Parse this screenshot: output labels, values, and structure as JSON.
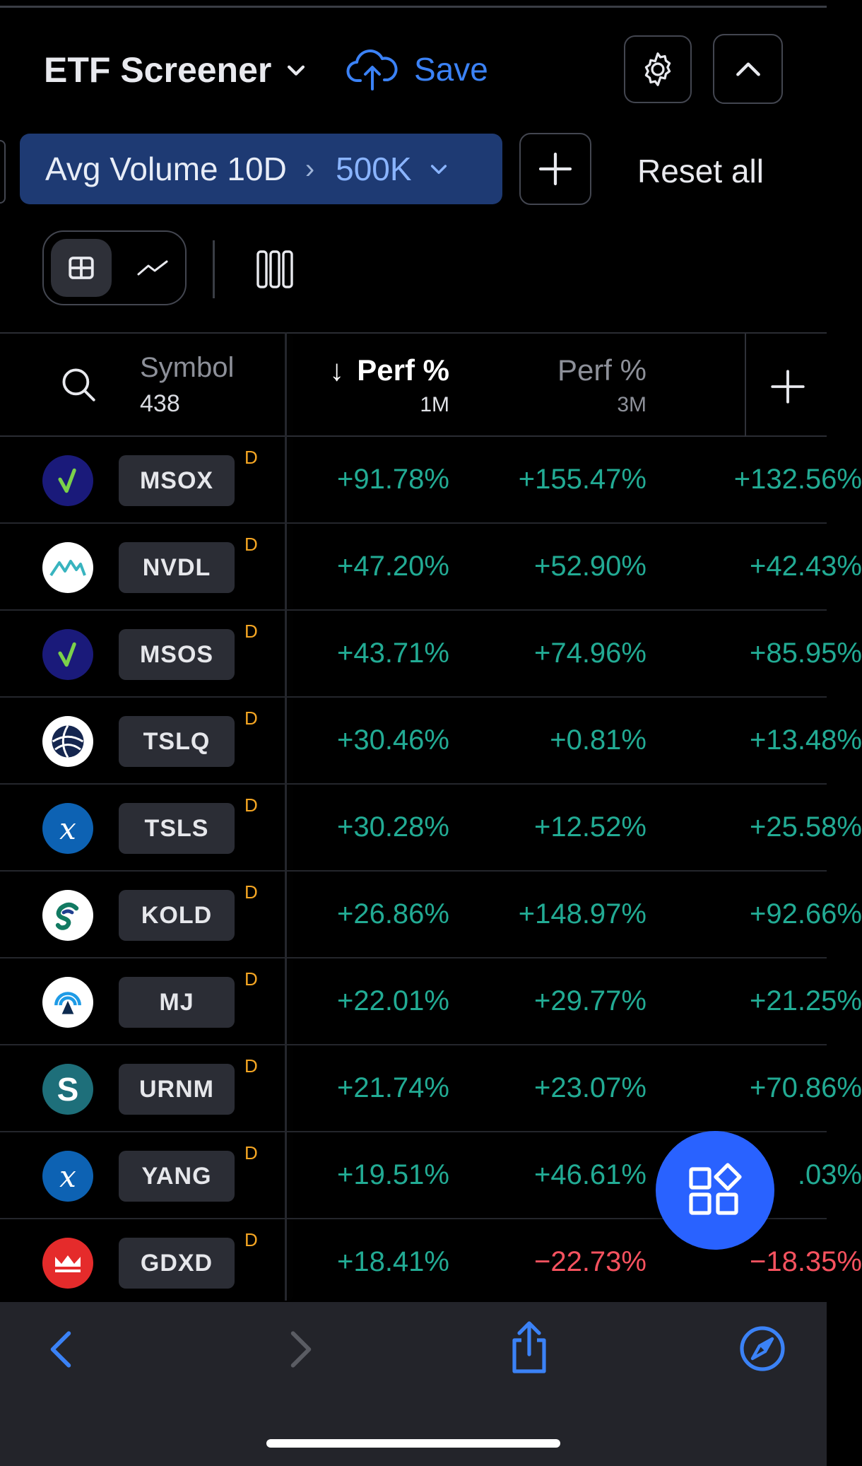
{
  "header": {
    "title": "ETF Screener",
    "save_label": "Save"
  },
  "filters": {
    "active_filter": {
      "name": "Avg Volume 10D",
      "value": "500K"
    },
    "reset_label": "Reset all"
  },
  "table": {
    "symbol_header": "Symbol",
    "symbol_count": "438",
    "columns": [
      {
        "label": "Perf %",
        "sub": "1M",
        "sorted": "desc"
      },
      {
        "label": "Perf %",
        "sub": "3M"
      }
    ],
    "rows": [
      {
        "symbol": "MSOX",
        "flag": "D",
        "logo": "checkmark-logo",
        "logo_bg": "#1a1a7a",
        "p1": "+91.78%",
        "p2": "+155.47%",
        "p3": "+132.56%"
      },
      {
        "symbol": "NVDL",
        "flag": "D",
        "logo": "mountain-logo",
        "logo_bg": "#ffffff",
        "p1": "+47.20%",
        "p2": "+52.90%",
        "p3": "+42.43%"
      },
      {
        "symbol": "MSOS",
        "flag": "D",
        "logo": "checkmark-logo",
        "logo_bg": "#1a1a7a",
        "p1": "+43.71%",
        "p2": "+74.96%",
        "p3": "+85.95%"
      },
      {
        "symbol": "TSLQ",
        "flag": "D",
        "logo": "globe-logo",
        "logo_bg": "#ffffff",
        "p1": "+30.46%",
        "p2": "+0.81%",
        "p3": "+13.48%"
      },
      {
        "symbol": "TSLS",
        "flag": "D",
        "logo": "x-logo",
        "logo_bg": "#0d62b3",
        "p1": "+30.28%",
        "p2": "+12.52%",
        "p3": "+25.58%"
      },
      {
        "symbol": "KOLD",
        "flag": "D",
        "logo": "swirl-logo",
        "logo_bg": "#ffffff",
        "p1": "+26.86%",
        "p2": "+148.97%",
        "p3": "+92.66%"
      },
      {
        "symbol": "MJ",
        "flag": "D",
        "logo": "signal-logo",
        "logo_bg": "#ffffff",
        "p1": "+22.01%",
        "p2": "+29.77%",
        "p3": "+21.25%"
      },
      {
        "symbol": "URNM",
        "flag": "D",
        "logo": "s-logo",
        "logo_bg": "#1e6f7a",
        "p1": "+21.74%",
        "p2": "+23.07%",
        "p3": "+70.86%"
      },
      {
        "symbol": "YANG",
        "flag": "D",
        "logo": "x-logo",
        "logo_bg": "#0d62b3",
        "p1": "+19.51%",
        "p2": "+46.61%",
        "p3": ".03%"
      },
      {
        "symbol": "GDXD",
        "flag": "D",
        "logo": "crown-logo",
        "logo_bg": "#e52b2b",
        "p1": "+18.41%",
        "p2": "−22.73%",
        "p3": "−18.35%"
      }
    ]
  },
  "colors": {
    "positive": "#22ab94",
    "negative": "#f7525f",
    "accent": "#2962ff",
    "flag": "#f5a623"
  },
  "icons": {
    "title_dropdown": "chevron-down-icon",
    "save": "cloud-upload-icon",
    "settings": "gear-icon",
    "collapse": "chevron-up-icon",
    "add_filter": "plus-icon",
    "table_view": "table-icon",
    "chart_view": "chart-icon",
    "columns": "columns-icon",
    "search": "search-icon",
    "add_column": "plus-icon",
    "fab": "apps-icon",
    "nav_back": "back-arrow-icon",
    "nav_forward": "forward-arrow-icon",
    "share": "share-icon",
    "browser": "compass-icon"
  }
}
